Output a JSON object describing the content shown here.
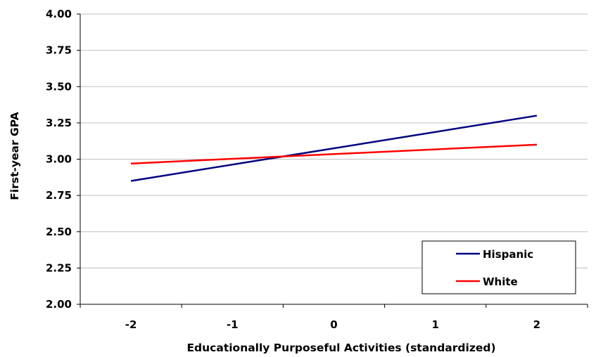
{
  "chart_data": {
    "type": "line",
    "xlabel": "Educationally Purposeful Activities (standardized)",
    "ylabel": "First-year GPA",
    "xlim": [
      -2.5,
      2.5
    ],
    "ylim": [
      2.0,
      4.0
    ],
    "x_ticks": [
      -2,
      -1,
      0,
      1,
      2
    ],
    "x_tick_labels": [
      "-2",
      "-1",
      "0",
      "1",
      "2"
    ],
    "y_ticks": [
      2.0,
      2.25,
      2.5,
      2.75,
      3.0,
      3.25,
      3.5,
      3.75,
      4.0
    ],
    "y_tick_labels": [
      "2.00",
      "2.25",
      "2.50",
      "2.75",
      "3.00",
      "3.25",
      "3.50",
      "3.75",
      "4.00"
    ],
    "grid": "horizontal",
    "legend_position": "bottom-right",
    "series": [
      {
        "name": "Hispanic",
        "color": "#000080",
        "x": [
          -2,
          2
        ],
        "values": [
          2.85,
          3.3
        ]
      },
      {
        "name": "White",
        "color": "#ff0000",
        "x": [
          -2,
          2
        ],
        "values": [
          2.97,
          3.1
        ]
      }
    ]
  }
}
